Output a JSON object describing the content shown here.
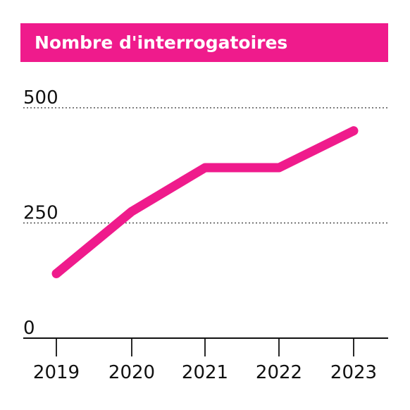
{
  "header": {
    "title": "Nombre d'interrogatoires"
  },
  "colors": {
    "accent": "#ef1b8c",
    "axis": "#111111",
    "grid": "#333333"
  },
  "chart_data": {
    "type": "line",
    "title": "Nombre d'interrogatoires",
    "xlabel": "",
    "ylabel": "",
    "x": [
      "2019",
      "2020",
      "2021",
      "2022",
      "2023"
    ],
    "series": [
      {
        "values": [
          140,
          275,
          370,
          370,
          450
        ]
      }
    ],
    "ylim": [
      0,
      500
    ],
    "yticks": [
      0,
      250,
      500
    ],
    "grid": "horizontal dotted",
    "legend": "none"
  }
}
